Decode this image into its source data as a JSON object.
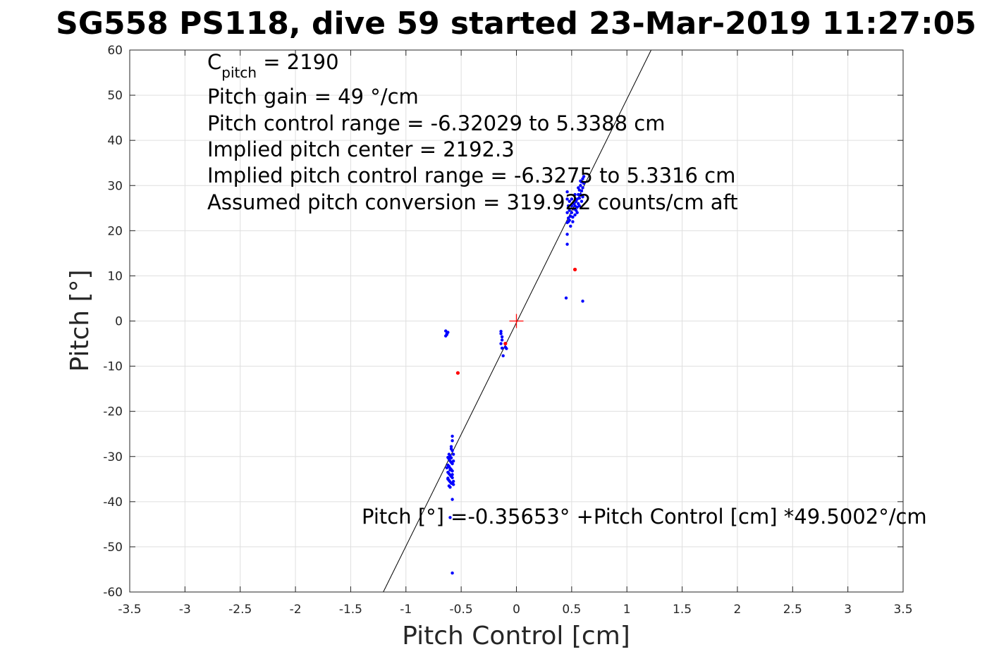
{
  "chart_data": {
    "type": "scatter",
    "title": "SG558 PS118, dive 59 started 23-Mar-2019 11:27:05",
    "xlabel": "Pitch Control [cm]",
    "ylabel": "Pitch [°]",
    "xlim": [
      -3.5,
      3.5
    ],
    "ylim": [
      -60,
      60
    ],
    "x_ticks": [
      "-3.5",
      "-3",
      "-2.5",
      "-2",
      "-1.5",
      "-1",
      "-0.5",
      "0",
      "0.5",
      "1",
      "1.5",
      "2",
      "2.5",
      "3",
      "3.5"
    ],
    "y_ticks": [
      "60",
      "50",
      "40",
      "30",
      "20",
      "10",
      "0",
      "-10",
      "-20",
      "-30",
      "-40",
      "-50",
      "-60"
    ],
    "grid": true,
    "annotations": {
      "c_pitch_main": "C",
      "c_pitch_sub": "pitch",
      "c_pitch_value": " = 2190",
      "pitch_gain": "Pitch gain = 49 °/cm",
      "control_range": "Pitch control range = -6.32029 to 5.3388 cm",
      "implied_center": "Implied pitch center = 2192.3",
      "implied_range": "Implied pitch control range = -6.3275 to 5.3316 cm",
      "conversion": "Assumed pitch conversion = 319.922 counts/cm aft",
      "fit_equation": "Pitch [°] =-0.35653° +Pitch Control [cm] *49.5002°/cm"
    },
    "fit_line": {
      "intercept": -0.35653,
      "slope": 49.5002
    },
    "center_marker": {
      "x": 0,
      "y": 0,
      "color": "#ff0000"
    },
    "series": [
      {
        "color": "#0000ff",
        "points": [
          [
            -0.64,
            -2.2
          ],
          [
            -0.63,
            -2.8
          ],
          [
            -0.64,
            -3.3
          ],
          [
            -0.62,
            -2.5
          ],
          [
            -0.63,
            -3.0
          ],
          [
            -0.14,
            -2.3
          ],
          [
            -0.14,
            -2.8
          ],
          [
            -0.13,
            -3.5
          ],
          [
            -0.13,
            -4.2
          ],
          [
            -0.14,
            -5.0
          ],
          [
            -0.13,
            -6.0
          ],
          [
            -0.12,
            -7.7
          ],
          [
            -0.1,
            -5.8
          ],
          [
            -0.09,
            -6.1
          ],
          [
            -0.58,
            -25.5
          ],
          [
            -0.58,
            -26.5
          ],
          [
            -0.59,
            -27.8
          ],
          [
            -0.58,
            -28.7
          ],
          [
            -0.57,
            -29.5
          ],
          [
            -0.6,
            -29.8
          ],
          [
            -0.62,
            -30.2
          ],
          [
            -0.61,
            -30.6
          ],
          [
            -0.6,
            -31.0
          ],
          [
            -0.59,
            -31.3
          ],
          [
            -0.58,
            -31.6
          ],
          [
            -0.62,
            -31.9
          ],
          [
            -0.61,
            -32.2
          ],
          [
            -0.6,
            -32.6
          ],
          [
            -0.59,
            -32.9
          ],
          [
            -0.58,
            -33.2
          ],
          [
            -0.62,
            -33.5
          ],
          [
            -0.61,
            -33.8
          ],
          [
            -0.6,
            -34.1
          ],
          [
            -0.59,
            -34.4
          ],
          [
            -0.58,
            -34.7
          ],
          [
            -0.62,
            -35.0
          ],
          [
            -0.61,
            -35.3
          ],
          [
            -0.6,
            -35.6
          ],
          [
            -0.59,
            -35.9
          ],
          [
            -0.57,
            -36.2
          ],
          [
            -0.61,
            -36.5
          ],
          [
            -0.6,
            -36.8
          ],
          [
            -0.58,
            -34.0
          ],
          [
            -0.57,
            -31.0
          ],
          [
            -0.63,
            -32.5
          ],
          [
            -0.62,
            -34.8
          ],
          [
            -0.59,
            -30.3
          ],
          [
            -0.58,
            -36.0
          ],
          [
            -0.6,
            -33.0
          ],
          [
            -0.61,
            -29.5
          ],
          [
            -0.58,
            -39.5
          ],
          [
            -0.6,
            -43.5
          ],
          [
            -0.57,
            -35.5
          ],
          [
            -0.59,
            -28.3
          ],
          [
            -0.58,
            -55.8
          ],
          [
            0.46,
            28.6
          ],
          [
            0.46,
            27.0
          ],
          [
            0.47,
            25.5
          ],
          [
            0.46,
            24.0
          ],
          [
            0.47,
            22.8
          ],
          [
            0.46,
            21.8
          ],
          [
            0.46,
            19.2
          ],
          [
            0.46,
            17.0
          ],
          [
            0.48,
            26.5
          ],
          [
            0.48,
            24.5
          ],
          [
            0.49,
            23.2
          ],
          [
            0.48,
            22.3
          ],
          [
            0.5,
            25.5
          ],
          [
            0.5,
            24.0
          ],
          [
            0.51,
            23.0
          ],
          [
            0.52,
            26.0
          ],
          [
            0.52,
            24.8
          ],
          [
            0.53,
            25.5
          ],
          [
            0.54,
            26.5
          ],
          [
            0.54,
            24.5
          ],
          [
            0.55,
            27.0
          ],
          [
            0.55,
            25.2
          ],
          [
            0.56,
            28.0
          ],
          [
            0.56,
            26.0
          ],
          [
            0.57,
            29.0
          ],
          [
            0.57,
            27.2
          ],
          [
            0.58,
            30.0
          ],
          [
            0.58,
            28.0
          ],
          [
            0.59,
            30.8
          ],
          [
            0.59,
            28.8
          ],
          [
            0.6,
            31.5
          ],
          [
            0.6,
            29.5
          ],
          [
            0.6,
            27.5
          ],
          [
            0.61,
            32.0
          ],
          [
            0.61,
            30.5
          ],
          [
            0.59,
            26.5
          ],
          [
            0.57,
            25.5
          ],
          [
            0.55,
            24.0
          ],
          [
            0.53,
            23.5
          ],
          [
            0.51,
            22.0
          ],
          [
            0.49,
            21.0
          ],
          [
            0.47,
            22.0
          ],
          [
            0.5,
            27.0
          ],
          [
            0.53,
            28.0
          ],
          [
            0.56,
            29.5
          ],
          [
            0.58,
            31.0
          ],
          [
            0.45,
            5.1
          ],
          [
            0.6,
            4.4
          ]
        ]
      },
      {
        "color": "#ff0000",
        "points": [
          [
            -0.53,
            -11.5
          ],
          [
            0.53,
            11.4
          ],
          [
            -0.1,
            -5.0
          ]
        ]
      }
    ]
  }
}
